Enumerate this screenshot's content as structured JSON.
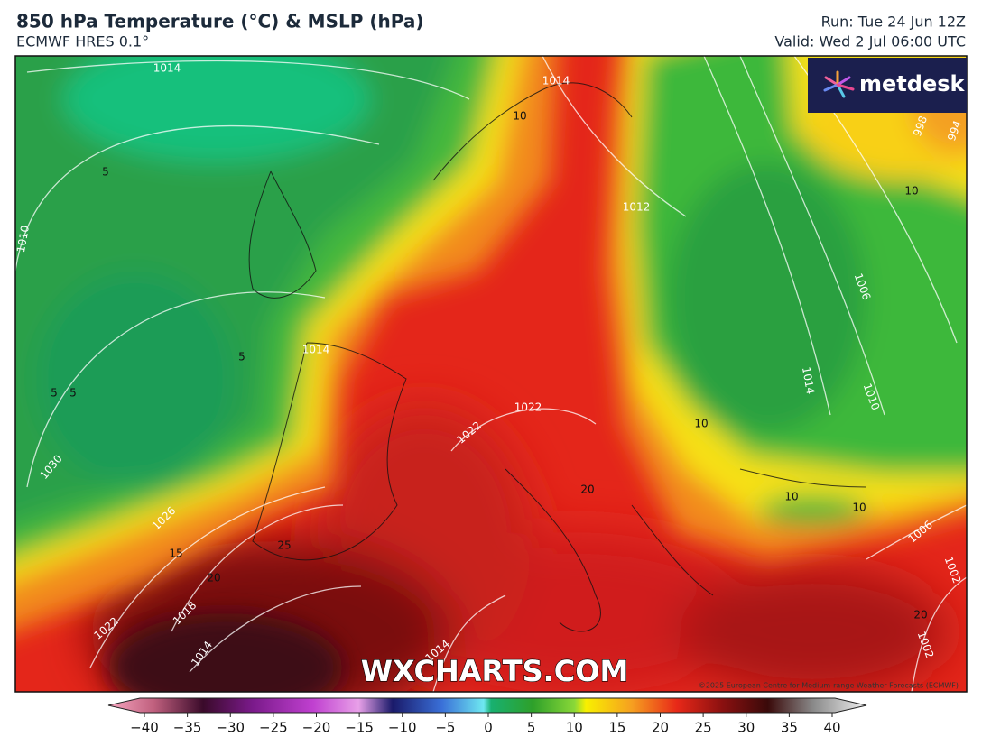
{
  "header": {
    "title": "850 hPa Temperature (°C) & MSLP (hPa)",
    "subtitle": "ECMWF HRES 0.1°",
    "run": "Run: Tue 24 Jun 12Z",
    "valid": "Valid: Wed 2 Jul 06:00 UTC"
  },
  "logo": "metdesk",
  "watermark": "WXCHARTS.COM",
  "copyright": "©2025 European Centre for Medium-range Weather Forecasts (ECMWF)",
  "map": {
    "isobar_labels": [
      "1014",
      "1014",
      "1010",
      "1012",
      "1006",
      "998",
      "994",
      "1014",
      "1014",
      "1010",
      "1022",
      "1022",
      "1030",
      "1026",
      "1018",
      "1022",
      "1014",
      "1014",
      "1006",
      "1002",
      "1002"
    ],
    "temperature_labels": [
      "10",
      "5",
      "5",
      "5",
      "5",
      "10",
      "10",
      "10",
      "10",
      "20",
      "15",
      "20",
      "25",
      "20"
    ]
  },
  "colorbar": {
    "ticks": [
      "−40",
      "−35",
      "−30",
      "−25",
      "−20",
      "−15",
      "−10",
      "−5",
      "0",
      "5",
      "10",
      "15",
      "20",
      "25",
      "30",
      "35",
      "40"
    ]
  }
}
